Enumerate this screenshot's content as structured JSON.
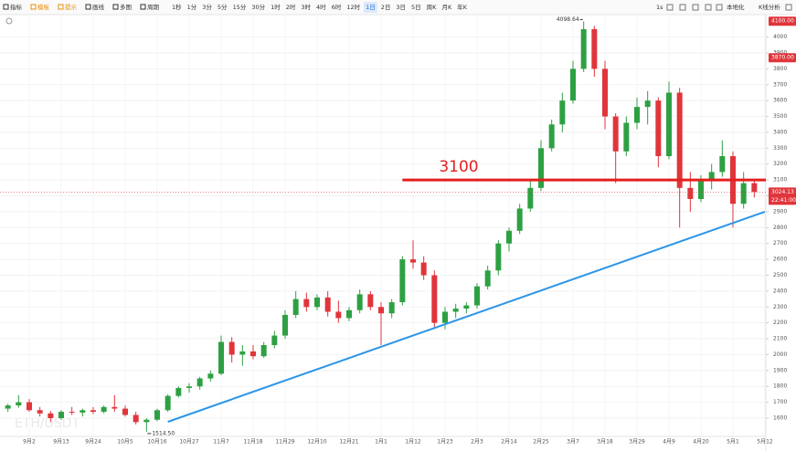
{
  "toolbar": {
    "left": [
      "指标",
      "模板",
      "提示",
      "画线",
      "多图",
      "周期"
    ],
    "left_colors": [
      "#333",
      "#e8900c",
      "#e8900c",
      "#333",
      "#333",
      "#333"
    ],
    "intervals": [
      "1秒",
      "1分",
      "3分",
      "5分",
      "15分",
      "30分",
      "1时",
      "2时",
      "3时",
      "4时",
      "6时",
      "12时",
      "1日",
      "2日",
      "3日",
      "5日",
      "周K",
      "月K",
      "年K"
    ],
    "active_interval": 12,
    "right": [
      "1s",
      "本地化",
      "K线分析"
    ]
  },
  "chart_data": {
    "type": "candlestick",
    "watermark": "ETH/USDT",
    "categories": [
      null,
      null,
      "9月2",
      null,
      null,
      "9月13",
      null,
      null,
      "9月24",
      null,
      null,
      "10月5",
      null,
      null,
      "10月16",
      null,
      null,
      "10月27",
      null,
      null,
      "11月7",
      null,
      null,
      "11月18",
      null,
      null,
      "11月29",
      null,
      null,
      "12月10",
      null,
      null,
      "12月21",
      null,
      null,
      "1月1",
      null,
      null,
      "1月12",
      null,
      null,
      "1月23",
      null,
      null,
      "2月3",
      null,
      null,
      "2月14",
      null,
      null,
      "2月25",
      null,
      null,
      "3月7",
      null,
      null,
      "3月18",
      null,
      null,
      "3月29",
      null,
      null,
      "4月9",
      null,
      null,
      "4月20",
      null,
      null,
      "5月1",
      null,
      null,
      "5月12"
    ],
    "open": [
      1660,
      1680,
      1700,
      1650,
      1630,
      1600,
      1640,
      1635,
      1650,
      1640,
      1670,
      1660,
      1620,
      1575,
      1590,
      1650,
      1740,
      1790,
      1800,
      1850,
      1880,
      2080,
      2000,
      2020,
      1990,
      2060,
      2120,
      2250,
      2350,
      2300,
      2360,
      2270,
      2230,
      2280,
      2380,
      2300,
      2260,
      2330,
      2600,
      2580,
      2500,
      2200,
      2270,
      2290,
      2310,
      2430,
      2530,
      2700,
      2780,
      2920,
      3050,
      3300,
      3450,
      3600,
      3800,
      4050,
      3800,
      3500,
      3280,
      3460,
      3560,
      3600,
      3250,
      3650,
      3050,
      2980,
      3100,
      3150,
      3250,
      2950,
      3080,
      null
    ],
    "high": [
      1690,
      1745,
      1720,
      1670,
      1645,
      1650,
      1670,
      1660,
      1670,
      1680,
      1745,
      1680,
      1640,
      1600,
      1660,
      1750,
      1800,
      1820,
      1860,
      1900,
      2120,
      2110,
      2060,
      2060,
      2080,
      2150,
      2280,
      2400,
      2390,
      2380,
      2400,
      2340,
      2300,
      2410,
      2400,
      2330,
      2350,
      2620,
      2720,
      2620,
      2530,
      2300,
      2320,
      2330,
      2450,
      2560,
      2720,
      2800,
      2950,
      3100,
      3350,
      3480,
      3650,
      3850,
      4098.64,
      4070,
      3850,
      3520,
      3500,
      3620,
      3660,
      3620,
      3720,
      3680,
      3150,
      3130,
      3200,
      3350,
      3280,
      3150,
      3100,
      null
    ],
    "low": [
      1640,
      1665,
      1640,
      1610,
      1575,
      1590,
      1620,
      1610,
      1625,
      1630,
      1640,
      1610,
      1560,
      1514.5,
      1580,
      1640,
      1730,
      1760,
      1780,
      1830,
      1870,
      1950,
      1930,
      1970,
      1980,
      2040,
      2100,
      2230,
      2270,
      2280,
      2240,
      2200,
      2210,
      2260,
      2280,
      2060,
      2230,
      2310,
      2540,
      2470,
      2170,
      2160,
      2230,
      2260,
      2290,
      2410,
      2500,
      2650,
      2760,
      2900,
      3030,
      3280,
      3400,
      3580,
      3780,
      3750,
      3420,
      3080,
      3250,
      3420,
      3450,
      3180,
      3230,
      2800,
      2900,
      2960,
      3040,
      3120,
      2800,
      2920,
      2990,
      null
    ],
    "close": [
      1680,
      1700,
      1650,
      1630,
      1600,
      1640,
      1635,
      1650,
      1640,
      1670,
      1660,
      1620,
      1575,
      1590,
      1650,
      1740,
      1790,
      1800,
      1850,
      1880,
      2080,
      2000,
      2020,
      1990,
      2060,
      2120,
      2250,
      2350,
      2300,
      2360,
      2270,
      2230,
      2280,
      2380,
      2300,
      2260,
      2330,
      2600,
      2580,
      2500,
      2200,
      2270,
      2290,
      2310,
      2430,
      2530,
      2700,
      2780,
      2920,
      3050,
      3300,
      3450,
      3600,
      3800,
      4050,
      3800,
      3500,
      3280,
      3460,
      3560,
      3600,
      3250,
      3650,
      3050,
      2980,
      3100,
      3150,
      3250,
      2950,
      3080,
      3024.13,
      null
    ],
    "up_color": "#2ea043",
    "down_color": "#e0353b",
    "ylim": [
      1485,
      4130
    ],
    "yticks": [
      1600,
      1700,
      1800,
      1900,
      2000,
      2100,
      2200,
      2300,
      2400,
      2500,
      2600,
      2700,
      2800,
      2900,
      3000,
      3100,
      3200,
      3300,
      3400,
      3500,
      3600,
      3700,
      3800,
      3900,
      4000
    ],
    "grid": true,
    "high_label": {
      "index": 54,
      "text": "4098.64"
    },
    "low_label": {
      "index": 13,
      "text": "1514.50"
    },
    "price_labels": [
      {
        "value": 4100,
        "label": "4100.00"
      },
      {
        "value": 3870,
        "label": "3870.00"
      }
    ],
    "current_price": {
      "value": 3024.13,
      "label": "3024.13",
      "time": "22:41:00"
    },
    "level_line": {
      "value": 3100,
      "label": "3100",
      "start_index": 37,
      "color": "#e3201f"
    },
    "trendline": {
      "start": [
        15,
        1577
      ],
      "end": [
        71,
        2900
      ],
      "color": "#2b95e8"
    }
  }
}
